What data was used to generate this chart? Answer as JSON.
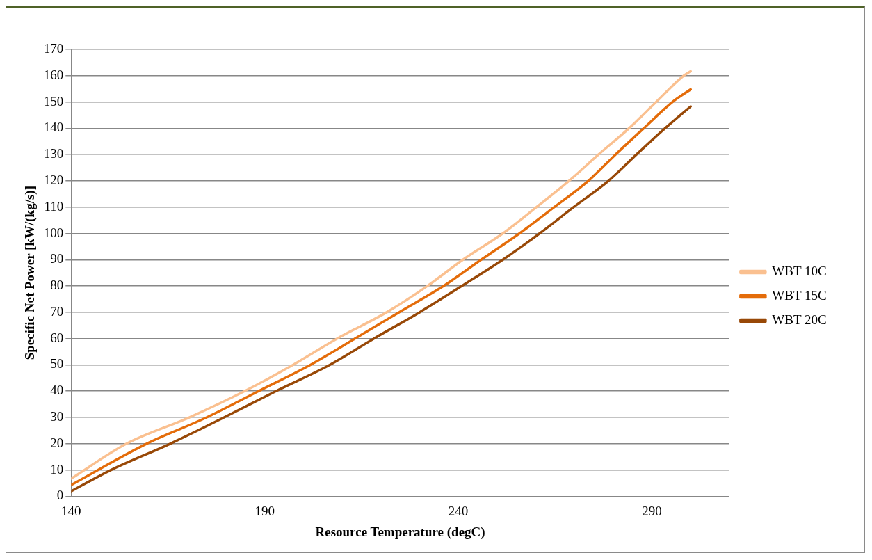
{
  "chart_data": {
    "type": "line",
    "xlabel": "Resource Temperature (degC)",
    "ylabel": "Specific Net Power [kW/(kg/s)]",
    "xlim": [
      140,
      310
    ],
    "xticks": [
      140,
      190,
      240,
      290
    ],
    "ylim": [
      0,
      170
    ],
    "yticks": [
      0,
      10,
      20,
      30,
      40,
      50,
      60,
      70,
      80,
      90,
      100,
      110,
      120,
      130,
      140,
      150,
      160,
      170
    ],
    "grid": "y",
    "legend": "right",
    "marker": "none",
    "line_style": "solid",
    "series": [
      {
        "name": "WBT 10C",
        "color": "#fac090",
        "x": [
          140,
          154.3,
          170.5,
          184.8,
          197.3,
          208.7,
          221.5,
          232,
          241.2,
          251.5,
          260.2,
          268.6,
          276.2,
          284.1,
          291.1,
          298.2,
          300
        ],
        "values": [
          6.7,
          20,
          30,
          40,
          50,
          60,
          70,
          80,
          90,
          100,
          110,
          120,
          130,
          140,
          150,
          160,
          161.7
        ]
      },
      {
        "name": "WBT 15C",
        "color": "#e46c0a",
        "x": [
          140,
          159.5,
          175,
          188.4,
          201.8,
          213.3,
          224.7,
          236.2,
          245.9,
          255.8,
          264.8,
          273.6,
          280.6,
          287.9,
          295.3,
          300
        ],
        "values": [
          4.3,
          20,
          30,
          40,
          50,
          60,
          70,
          80,
          90,
          100,
          110,
          120,
          130,
          140,
          150,
          154.8
        ]
      },
      {
        "name": "WBT 20C",
        "color": "#984807",
        "x": [
          140,
          150.3,
          165.6,
          179.5,
          192.9,
          206.8,
          218.2,
          230,
          240.9,
          251.5,
          261,
          269.8,
          278.8,
          286,
          293.4,
          300
        ],
        "values": [
          1.9,
          10,
          20,
          30,
          40,
          50,
          60,
          70,
          80,
          90,
          100,
          110,
          120,
          130,
          140,
          148.3
        ]
      }
    ]
  }
}
